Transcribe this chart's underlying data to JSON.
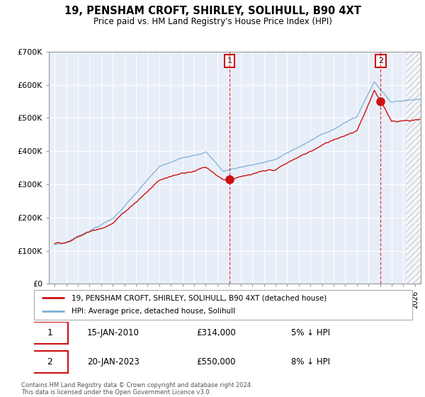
{
  "title": "19, PENSHAM CROFT, SHIRLEY, SOLIHULL, B90 4XT",
  "subtitle": "Price paid vs. HM Land Registry's House Price Index (HPI)",
  "background_color": "#ffffff",
  "chart_bg_color": "#e8eef8",
  "hpi_color": "#7ab0d4",
  "price_color": "#cc1111",
  "ylim": [
    0,
    700000
  ],
  "yticks": [
    0,
    100000,
    200000,
    300000,
    400000,
    500000,
    600000,
    700000
  ],
  "ytick_labels": [
    "£0",
    "£100K",
    "£200K",
    "£300K",
    "£400K",
    "£500K",
    "£600K",
    "£700K"
  ],
  "xmin": 1994.5,
  "xmax": 2026.5,
  "sale1_x": 2010.04,
  "sale1_y": 314000,
  "sale2_x": 2023.05,
  "sale2_y": 550000,
  "sale1_label": "15-JAN-2010",
  "sale1_price": "£314,000",
  "sale1_note": "5% ↓ HPI",
  "sale2_label": "20-JAN-2023",
  "sale2_price": "£550,000",
  "sale2_note": "8% ↓ HPI",
  "legend_line1": "19, PENSHAM CROFT, SHIRLEY, SOLIHULL, B90 4XT (detached house)",
  "legend_line2": "HPI: Average price, detached house, Solihull",
  "footnote": "Contains HM Land Registry data © Crown copyright and database right 2024.\nThis data is licensed under the Open Government Licence v3.0.",
  "hatch_start": 2025.2
}
